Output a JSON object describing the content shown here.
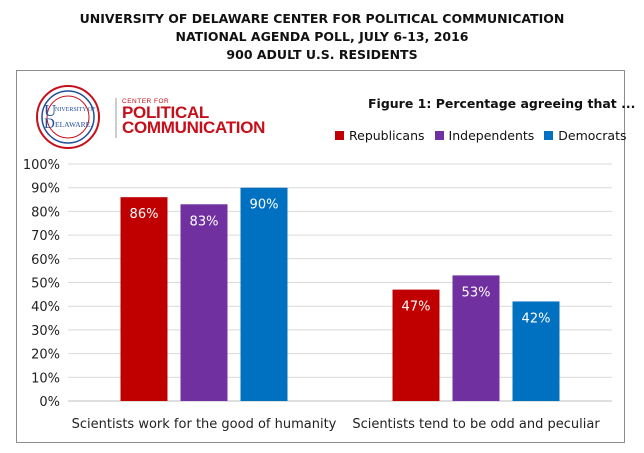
{
  "header": {
    "line1": "UNIVERSITY OF DELAWARE CENTER FOR POLITICAL COMMUNICATION",
    "line2": "NATIONAL AGENDA POLL, JULY 6-13, 2016",
    "line3": "900 ADULT U.S. RESIDENTS"
  },
  "logo": {
    "university_line1": "NIVERSITY OF",
    "university_line2": "ELAWARE.",
    "center_small": "CENTER FOR",
    "center_line1": "POLITICAL",
    "center_line2": "COMMUNICATION"
  },
  "colors": {
    "Republicans": "#c00000",
    "Independents": "#7030a0",
    "Democrats": "#0070c0",
    "logo_red": "#c5101b",
    "logo_blue": "#1f4e9a"
  },
  "chart_data": {
    "type": "bar",
    "title": "Figure 1: Percentage agreeing that ...",
    "categories": [
      "Scientists work for the good of humanity",
      "Scientists tend to be odd and peculiar"
    ],
    "series": [
      {
        "name": "Republicans",
        "values": [
          86,
          47
        ],
        "labels": [
          "86%",
          "47%"
        ]
      },
      {
        "name": "Independents",
        "values": [
          83,
          53
        ],
        "labels": [
          "83%",
          "53%"
        ]
      },
      {
        "name": "Democrats",
        "values": [
          90,
          42
        ],
        "labels": [
          "90%",
          "42%"
        ]
      }
    ],
    "ylim": [
      0,
      100
    ],
    "yticks": [
      "0%",
      "10%",
      "20%",
      "30%",
      "40%",
      "50%",
      "60%",
      "70%",
      "80%",
      "90%",
      "100%"
    ],
    "grid": true,
    "legend_position": "top-right"
  }
}
